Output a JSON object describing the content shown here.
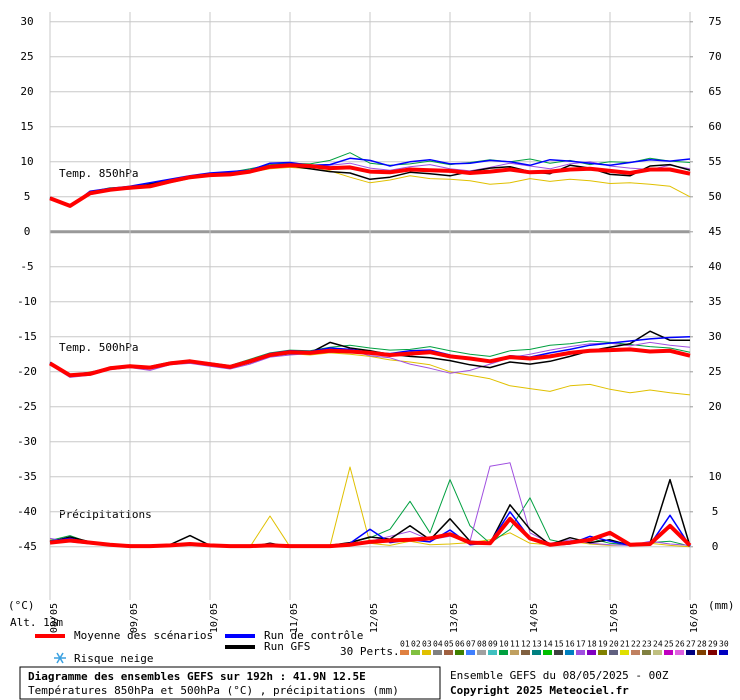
{
  "chart_data": {
    "type": "line",
    "title": "Diagramme des ensembles GEFS sur 192h : 41.9N 12.5E",
    "subtitle": "Températures 850hPa et 500hPa (°C) , précipitations (mm)",
    "run_info": "Ensemble GEFS du 08/05/2025 - 00Z",
    "copyright": "Copyright 2025 Meteociel.fr",
    "altitude": "Alt. 13m",
    "y_unit": "(°C)",
    "y2_unit": "(mm)",
    "annotations": {
      "t850": "Temp. 850hPa",
      "t500": "Temp. 500hPa",
      "precip": "Précipitations"
    },
    "snow_risk": "Risque neige",
    "grid": true,
    "x": [
      0,
      6,
      12,
      18,
      24,
      30,
      36,
      42,
      48,
      54,
      60,
      66,
      72,
      78,
      84,
      90,
      96,
      102,
      108,
      114,
      120,
      126,
      132,
      138,
      144,
      150,
      156,
      162,
      168,
      174,
      180,
      186,
      192
    ],
    "xlim": [
      0,
      192
    ],
    "xticks": [
      {
        "value": 0,
        "label": "08/05"
      },
      {
        "value": 24,
        "label": "09/05"
      },
      {
        "value": 48,
        "label": "10/05"
      },
      {
        "value": 72,
        "label": "11/05"
      },
      {
        "value": 96,
        "label": "12/05"
      },
      {
        "value": 120,
        "label": "13/05"
      },
      {
        "value": 144,
        "label": "14/05"
      },
      {
        "value": 168,
        "label": "15/05"
      },
      {
        "value": 192,
        "label": "16/05"
      }
    ],
    "ylim": [
      -52.6,
      31.4
    ],
    "yticks": [
      30,
      25,
      20,
      15,
      10,
      5,
      0,
      -5,
      -10,
      -15,
      -20,
      -25,
      -30,
      -35,
      -40,
      -45
    ],
    "y2lim": [
      -7.6,
      76.4
    ],
    "y2ticks": [
      75,
      70,
      65,
      60,
      55,
      50,
      45,
      40,
      35,
      30,
      25,
      20,
      10,
      5,
      0
    ],
    "series": [
      {
        "name": "Moyenne des scénarios",
        "color": "#ff0000",
        "t850": [
          4.8,
          3.7,
          5.5,
          6.0,
          6.3,
          6.5,
          7.2,
          7.8,
          8.1,
          8.2,
          8.6,
          9.3,
          9.5,
          9.4,
          9.1,
          9.2,
          8.6,
          8.5,
          8.9,
          8.8,
          8.7,
          8.4,
          8.6,
          8.9,
          8.5,
          8.6,
          8.9,
          9.0,
          8.7,
          8.4,
          8.9,
          8.9,
          8.3
        ],
        "t500": [
          -18.8,
          -20.5,
          -20.3,
          -19.5,
          -19.2,
          -19.4,
          -18.8,
          -18.5,
          -18.9,
          -19.3,
          -18.5,
          -17.6,
          -17.2,
          -17.3,
          -17.0,
          -17.1,
          -17.3,
          -17.6,
          -17.4,
          -17.2,
          -17.8,
          -18.1,
          -18.5,
          -17.9,
          -18.1,
          -17.8,
          -17.3,
          -17.0,
          -16.9,
          -16.8,
          -17.1,
          -17.0,
          -17.7
        ],
        "precip": [
          0.6,
          0.9,
          0.6,
          0.3,
          0.1,
          0.1,
          0.2,
          0.4,
          0.2,
          0.1,
          0.1,
          0.2,
          0.1,
          0.1,
          0.1,
          0.3,
          0.7,
          0.9,
          1.0,
          1.2,
          1.8,
          0.6,
          0.5,
          4.0,
          1.2,
          0.3,
          0.6,
          1.0,
          2.0,
          0.3,
          0.4,
          3.0,
          0.2
        ]
      },
      {
        "name": "Run de contrôle",
        "color": "#0000ff",
        "t850": [
          4.8,
          3.6,
          5.8,
          6.2,
          6.5,
          7.0,
          7.5,
          8.0,
          8.4,
          8.6,
          8.8,
          9.8,
          9.9,
          9.5,
          9.6,
          10.5,
          10.2,
          9.4,
          10.0,
          10.3,
          9.7,
          9.8,
          10.2,
          10.0,
          9.5,
          10.3,
          10.1,
          9.8,
          9.5,
          9.9,
          10.3,
          10.1,
          10.4
        ],
        "t500": [
          -18.7,
          -20.4,
          -20.1,
          -19.4,
          -19.2,
          -19.3,
          -18.7,
          -18.4,
          -18.9,
          -19.2,
          -18.4,
          -17.4,
          -17.0,
          -17.1,
          -16.6,
          -16.8,
          -17.2,
          -17.4,
          -17.0,
          -16.9,
          -17.6,
          -18.2,
          -18.6,
          -17.7,
          -17.9,
          -17.3,
          -16.8,
          -16.2,
          -15.9,
          -15.6,
          -15.3,
          -15.1,
          -15.0
        ],
        "precip": [
          0.8,
          1.2,
          0.5,
          0.2,
          0.0,
          0.0,
          0.1,
          0.3,
          0.1,
          0.0,
          0.0,
          0.4,
          0.0,
          0.0,
          0.0,
          0.5,
          2.5,
          0.6,
          1.0,
          0.7,
          2.4,
          0.3,
          0.6,
          5.0,
          1.2,
          0.2,
          0.4,
          1.5,
          0.8,
          0.2,
          0.3,
          4.5,
          0.1
        ]
      },
      {
        "name": "Run GFS",
        "color": "#000000",
        "t850": [
          4.9,
          3.7,
          5.4,
          6.1,
          6.2,
          6.8,
          7.4,
          7.9,
          8.2,
          8.4,
          8.7,
          9.2,
          9.4,
          9.0,
          8.6,
          8.4,
          7.5,
          7.8,
          8.5,
          8.3,
          8.0,
          8.6,
          9.1,
          9.3,
          8.6,
          8.3,
          9.5,
          9.1,
          8.2,
          8.0,
          9.4,
          9.6,
          8.8
        ],
        "t500": [
          -18.8,
          -20.5,
          -20.4,
          -19.6,
          -19.1,
          -19.5,
          -18.9,
          -18.6,
          -19.0,
          -19.4,
          -18.7,
          -17.7,
          -17.4,
          -17.3,
          -15.8,
          -16.6,
          -17.0,
          -17.5,
          -17.8,
          -18.0,
          -18.4,
          -19.0,
          -19.4,
          -18.6,
          -18.9,
          -18.5,
          -17.8,
          -17.0,
          -16.5,
          -16.0,
          -14.2,
          -15.5,
          -15.5
        ],
        "precip": [
          0.7,
          1.4,
          0.7,
          0.2,
          0.0,
          0.1,
          0.3,
          1.6,
          0.2,
          0.0,
          0.0,
          0.5,
          0.0,
          0.0,
          0.2,
          0.6,
          1.4,
          1.1,
          3.0,
          1.0,
          4.0,
          0.8,
          0.5,
          6.0,
          2.5,
          0.3,
          1.3,
          0.6,
          1.0,
          0.2,
          0.5,
          9.6,
          0.1
        ]
      }
    ],
    "perturbations": {
      "label": "30 Perts.",
      "members": [
        {
          "name": "01",
          "color": "#e08040"
        },
        {
          "name": "02",
          "color": "#80c040"
        },
        {
          "name": "03",
          "color": "#e0c000",
          "t850": [
            4.8,
            3.8,
            5.5,
            6.0,
            6.4,
            6.3,
            7.0,
            7.6,
            8.0,
            8.2,
            8.5,
            9.0,
            9.2,
            9.0,
            8.7,
            7.8,
            7.0,
            7.4,
            8.0,
            7.6,
            7.5,
            7.3,
            6.8,
            7.0,
            7.6,
            7.2,
            7.5,
            7.3,
            6.9,
            7.0,
            6.8,
            6.5,
            5.0
          ],
          "t500": [
            -18.9,
            -20.6,
            -20.0,
            -19.6,
            -19.0,
            -19.5,
            -18.9,
            -18.3,
            -19.0,
            -19.4,
            -18.6,
            -17.5,
            -17.4,
            -17.6,
            -17.3,
            -17.5,
            -17.8,
            -18.3,
            -18.6,
            -19.0,
            -20.0,
            -20.5,
            -21.0,
            -22.0,
            -22.4,
            -22.8,
            -22.0,
            -21.8,
            -22.5,
            -23.0,
            -22.6,
            -23.0,
            -23.3
          ],
          "precip": [
            1.0,
            0.8,
            0.5,
            0.2,
            0.0,
            0.1,
            0.3,
            0.2,
            0.2,
            0.0,
            0.0,
            4.4,
            0.0,
            0.0,
            0.1,
            11.4,
            0.5,
            0.2,
            0.8,
            0.3,
            0.4,
            0.6,
            1.0,
            2.0,
            0.5,
            0.3,
            0.8,
            0.4,
            0.2,
            0.3,
            0.5,
            0.2,
            0.0
          ]
        },
        {
          "name": "04",
          "color": "#808080"
        },
        {
          "name": "05",
          "color": "#a06040"
        },
        {
          "name": "06",
          "color": "#408000"
        },
        {
          "name": "07",
          "color": "#4080ff"
        },
        {
          "name": "08",
          "color": "#a0a0a0"
        },
        {
          "name": "09",
          "color": "#40c0c0"
        },
        {
          "name": "10",
          "color": "#00a040",
          "t850": [
            4.9,
            3.9,
            5.7,
            6.3,
            6.4,
            6.9,
            7.3,
            8.0,
            8.3,
            8.5,
            9.0,
            9.6,
            9.8,
            9.7,
            10.2,
            11.3,
            9.8,
            9.5,
            9.7,
            10.1,
            9.6,
            9.9,
            10.3,
            10.0,
            10.4,
            9.8,
            10.2,
            9.6,
            10.0,
            9.9,
            10.5,
            10.1,
            9.9
          ],
          "t500": [
            -18.6,
            -20.4,
            -20.2,
            -19.3,
            -19.1,
            -19.2,
            -18.6,
            -18.4,
            -18.7,
            -19.1,
            -18.2,
            -17.3,
            -16.9,
            -17.0,
            -16.5,
            -16.2,
            -16.6,
            -16.9,
            -16.8,
            -16.4,
            -17.0,
            -17.5,
            -17.8,
            -17.0,
            -16.8,
            -16.2,
            -16.0,
            -15.6,
            -15.8,
            -16.1,
            -16.4,
            -16.6,
            -17.2
          ],
          "precip": [
            0.9,
            1.6,
            0.6,
            0.3,
            0.1,
            0.0,
            0.2,
            0.4,
            0.2,
            0.1,
            0.0,
            0.1,
            0.0,
            0.1,
            0.2,
            0.6,
            1.3,
            2.5,
            6.5,
            2.0,
            9.6,
            3.0,
            0.5,
            2.5,
            7.0,
            1.0,
            0.4,
            1.2,
            0.5,
            0.3,
            0.6,
            0.8,
            0.1
          ]
        },
        {
          "name": "11",
          "color": "#c0a060"
        },
        {
          "name": "12",
          "color": "#806040"
        },
        {
          "name": "13",
          "color": "#008080"
        },
        {
          "name": "14",
          "color": "#00c000"
        },
        {
          "name": "15",
          "color": "#404040"
        },
        {
          "name": "16",
          "color": "#0080c0"
        },
        {
          "name": "17",
          "color": "#a050e0",
          "t850": [
            4.7,
            3.6,
            5.3,
            5.9,
            6.1,
            6.6,
            7.0,
            7.7,
            8.0,
            8.3,
            8.7,
            9.4,
            9.6,
            9.2,
            9.5,
            9.8,
            9.1,
            8.8,
            9.3,
            9.6,
            9.0,
            8.7,
            9.2,
            9.8,
            9.4,
            9.0,
            9.7,
            10.0,
            9.4,
            9.1,
            8.9,
            9.5,
            9.0
          ],
          "t500": [
            -19.0,
            -20.8,
            -20.5,
            -19.7,
            -19.4,
            -19.8,
            -19.0,
            -18.8,
            -19.2,
            -19.6,
            -18.9,
            -17.9,
            -17.6,
            -17.4,
            -17.2,
            -17.0,
            -17.7,
            -18.0,
            -18.9,
            -19.5,
            -20.2,
            -19.8,
            -18.9,
            -18.0,
            -17.5,
            -16.9,
            -16.4,
            -16.0,
            -15.9,
            -16.3,
            -15.8,
            -16.2,
            -16.5
          ],
          "precip": [
            1.2,
            0.7,
            0.4,
            0.2,
            0.1,
            0.1,
            0.2,
            0.3,
            0.1,
            0.0,
            0.1,
            0.0,
            0.0,
            0.2,
            0.1,
            0.4,
            0.8,
            1.5,
            2.2,
            1.0,
            1.5,
            0.8,
            11.5,
            12.0,
            2.0,
            0.5,
            1.0,
            0.5,
            0.3,
            0.2,
            0.8,
            0.4,
            0.2
          ]
        },
        {
          "name": "18",
          "color": "#8000c0"
        },
        {
          "name": "19",
          "color": "#808000"
        },
        {
          "name": "20",
          "color": "#606080"
        },
        {
          "name": "21",
          "color": "#e0e000"
        },
        {
          "name": "22",
          "color": "#c08060"
        },
        {
          "name": "23",
          "color": "#808040"
        },
        {
          "name": "24",
          "color": "#c0c080"
        },
        {
          "name": "25",
          "color": "#c000c0"
        },
        {
          "name": "26",
          "color": "#e060e0"
        },
        {
          "name": "27",
          "color": "#000080"
        },
        {
          "name": "28",
          "color": "#804000"
        },
        {
          "name": "29",
          "color": "#800000"
        },
        {
          "name": "30",
          "color": "#0000c0"
        }
      ]
    }
  }
}
